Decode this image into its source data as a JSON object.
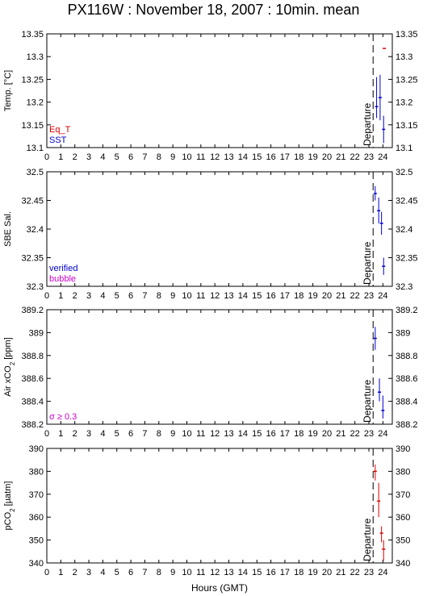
{
  "title": "PX116W : November 18, 2007 : 10min. mean",
  "xlabel": "Hours (GMT)",
  "chart_data": [
    {
      "type": "scatter",
      "id": "temp",
      "ylabel": "Temp. [°C]",
      "ylim": [
        13.1,
        13.35
      ],
      "yticks": [
        13.1,
        13.15,
        13.2,
        13.25,
        13.3,
        13.35
      ],
      "yticklabels": [
        "13.1",
        "13.15",
        "13.2",
        "13.25",
        "13.3",
        "13.35"
      ],
      "xlim": [
        0,
        24.67
      ],
      "xticks": [
        0,
        1,
        2,
        3,
        4,
        5,
        6,
        7,
        8,
        9,
        10,
        11,
        12,
        13,
        14,
        15,
        16,
        17,
        18,
        19,
        20,
        21,
        22,
        23,
        24
      ],
      "annotation": "Departure",
      "departure_hour": 23.3,
      "legend": [
        {
          "label": "Eq_T",
          "color": "#dd0000"
        },
        {
          "label": "SST",
          "color": "#0000cc"
        }
      ],
      "series": [
        {
          "name": "Eq_T",
          "color": "#dd0000",
          "points": [
            {
              "x": 24.1,
              "y": 13.318,
              "lo": 13.318,
              "hi": 13.318
            }
          ]
        },
        {
          "name": "SST",
          "color": "#0000cc",
          "points": [
            {
              "x": 23.55,
              "y": 13.19,
              "lo": 13.165,
              "hi": 13.255
            },
            {
              "x": 23.8,
              "y": 13.21,
              "lo": 13.16,
              "hi": 13.26
            },
            {
              "x": 24.05,
              "y": 13.14,
              "lo": 13.11,
              "hi": 13.17
            }
          ]
        }
      ]
    },
    {
      "type": "scatter",
      "id": "sal",
      "ylabel": "SBE Sal.",
      "ylim": [
        32.3,
        32.5
      ],
      "yticks": [
        32.3,
        32.35,
        32.4,
        32.45,
        32.5
      ],
      "yticklabels": [
        "32.3",
        "32.35",
        "32.4",
        "32.45",
        "32.5"
      ],
      "xlim": [
        0,
        24.67
      ],
      "xticks": [
        0,
        1,
        2,
        3,
        4,
        5,
        6,
        7,
        8,
        9,
        10,
        11,
        12,
        13,
        14,
        15,
        16,
        17,
        18,
        19,
        20,
        21,
        22,
        23,
        24
      ],
      "annotation": "Departure",
      "departure_hour": 23.3,
      "legend": [
        {
          "label": "verified",
          "color": "#0000cc"
        },
        {
          "label": "bubble",
          "color": "#cc00cc"
        }
      ],
      "series": [
        {
          "name": "verified",
          "color": "#0000cc",
          "points": [
            {
              "x": 23.45,
              "y": 32.462,
              "lo": 32.45,
              "hi": 32.475
            },
            {
              "x": 23.7,
              "y": 32.432,
              "lo": 32.41,
              "hi": 32.455
            },
            {
              "x": 23.9,
              "y": 32.41,
              "lo": 32.39,
              "hi": 32.43
            },
            {
              "x": 24.05,
              "y": 32.335,
              "lo": 32.32,
              "hi": 32.35
            }
          ]
        }
      ]
    },
    {
      "type": "scatter",
      "id": "air",
      "ylabel": "Air xCO2 [ppm]",
      "ylim": [
        388.2,
        389.2
      ],
      "yticks": [
        388.2,
        388.4,
        388.6,
        388.8,
        389,
        389.2
      ],
      "yticklabels": [
        "388.2",
        "388.4",
        "388.6",
        "388.8",
        "389",
        "389.2"
      ],
      "xlim": [
        0,
        24.67
      ],
      "xticks": [
        0,
        1,
        2,
        3,
        4,
        5,
        6,
        7,
        8,
        9,
        10,
        11,
        12,
        13,
        14,
        15,
        16,
        17,
        18,
        19,
        20,
        21,
        22,
        23,
        24
      ],
      "annotation": "Departure",
      "departure_hour": 23.3,
      "legend": [
        {
          "label": "σ ≥ 0.3",
          "color": "#cc00cc"
        }
      ],
      "series": [
        {
          "name": "Air xCO2",
          "color": "#0000cc",
          "points": [
            {
              "x": 23.45,
              "y": 388.95,
              "lo": 388.85,
              "hi": 389.05
            },
            {
              "x": 23.75,
              "y": 388.48,
              "lo": 388.4,
              "hi": 388.6
            },
            {
              "x": 24.0,
              "y": 388.32,
              "lo": 388.25,
              "hi": 388.45
            }
          ]
        }
      ]
    },
    {
      "type": "scatter",
      "id": "pco2",
      "ylabel": "pCO2 [µatm]",
      "ylim": [
        340,
        390
      ],
      "yticks": [
        340,
        350,
        360,
        370,
        380,
        390
      ],
      "yticklabels": [
        "340",
        "350",
        "360",
        "370",
        "380",
        "390"
      ],
      "xlim": [
        0,
        24.67
      ],
      "xticks": [
        0,
        1,
        2,
        3,
        4,
        5,
        6,
        7,
        8,
        9,
        10,
        11,
        12,
        13,
        14,
        15,
        16,
        17,
        18,
        19,
        20,
        21,
        22,
        23,
        24
      ],
      "annotation": "Departure",
      "departure_hour": 23.3,
      "legend": [],
      "series": [
        {
          "name": "pCO2",
          "color": "#dd0000",
          "points": [
            {
              "x": 23.45,
              "y": 380,
              "lo": 376,
              "hi": 383
            },
            {
              "x": 23.7,
              "y": 367,
              "lo": 360,
              "hi": 375
            },
            {
              "x": 23.9,
              "y": 353,
              "lo": 349,
              "hi": 356
            },
            {
              "x": 24.05,
              "y": 346,
              "lo": 341,
              "hi": 350
            }
          ]
        }
      ]
    }
  ]
}
